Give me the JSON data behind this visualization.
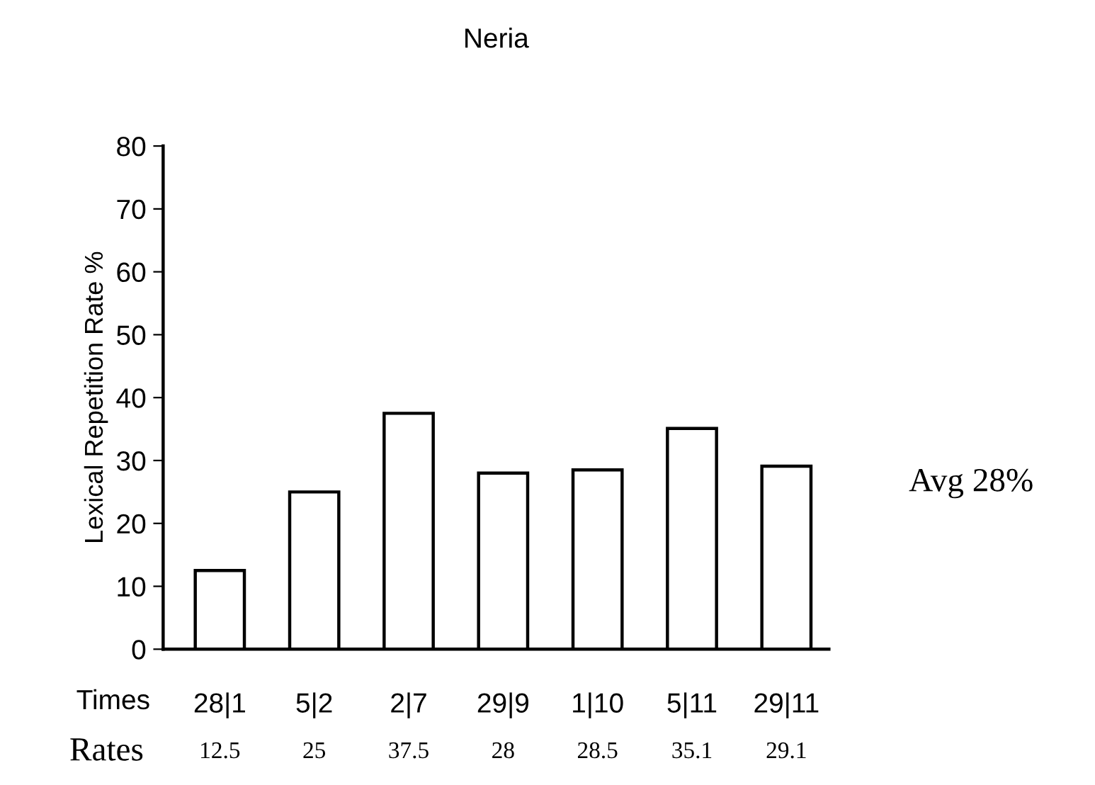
{
  "chart_data": {
    "type": "bar",
    "title": "Neria",
    "ylabel": "Lexical Repetition Rate %",
    "xlabel": "Times",
    "categories": [
      "28|1",
      "5|2",
      "2|7",
      "29|9",
      "1|10",
      "5|11",
      "29|11"
    ],
    "values": [
      12.5,
      25,
      37.5,
      28,
      28.5,
      35.1,
      29.1
    ],
    "color": "#ffffff",
    "data_labels": true,
    "ylim": [
      0,
      80
    ],
    "yticks": [
      0,
      10,
      20,
      30,
      40,
      50,
      60,
      70,
      80
    ],
    "grid": false,
    "annotations": [
      "Rates",
      "Avg 28%"
    ]
  }
}
